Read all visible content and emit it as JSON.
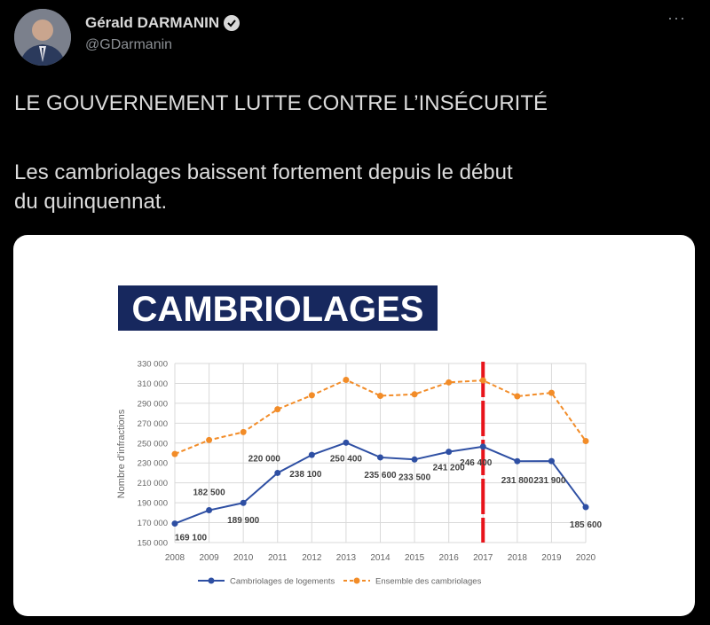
{
  "tweet": {
    "author_name": "Gérald DARMANIN",
    "handle": "@GDarmanin",
    "verified_icon": "verified-badge-icon",
    "more_icon": "more-dots-icon",
    "text_line1": "LE GOUVERNEMENT LUTTE CONTRE L’INSÉCURITÉ",
    "text_line2": "Les cambriolages baissent fortement depuis le début",
    "text_line3": "du quinquennat."
  },
  "chart_data": {
    "type": "line",
    "title": "CAMBRIOLAGES",
    "ylabel": "Nombre d'infractions",
    "xlabel": "",
    "ylim": [
      150000,
      330000
    ],
    "yticks": [
      "150 000",
      "170 000",
      "190 000",
      "210 000",
      "230 000",
      "250 000",
      "270 000",
      "290 000",
      "310 000",
      "330 000"
    ],
    "categories": [
      "2008",
      "2009",
      "2010",
      "2011",
      "2012",
      "2013",
      "2014",
      "2015",
      "2016",
      "2017",
      "2018",
      "2019",
      "2020"
    ],
    "grid": true,
    "legend": "bottom",
    "marker_line": {
      "x": "2017",
      "color": "#e8141b"
    },
    "series": [
      {
        "name": "Cambriolages de logements",
        "color": "#2e4fa3",
        "style": "solid",
        "values": [
          169100,
          182500,
          189900,
          220000,
          238100,
          250400,
          235600,
          233500,
          241200,
          246400,
          231800,
          231900,
          185600
        ],
        "labels": [
          "169 100",
          "182 500",
          "189 900",
          "220 000",
          "238 100",
          "250 400",
          "235 600",
          "233 500",
          "241 200",
          "246 400",
          "231 800",
          "231 900",
          "185 600"
        ]
      },
      {
        "name": "Ensemble des cambriolages",
        "color": "#f28c28",
        "style": "dashed",
        "values": [
          239000,
          253000,
          261000,
          284000,
          298000,
          313500,
          297500,
          299000,
          311000,
          313000,
          297000,
          300500,
          252000
        ]
      }
    ]
  }
}
